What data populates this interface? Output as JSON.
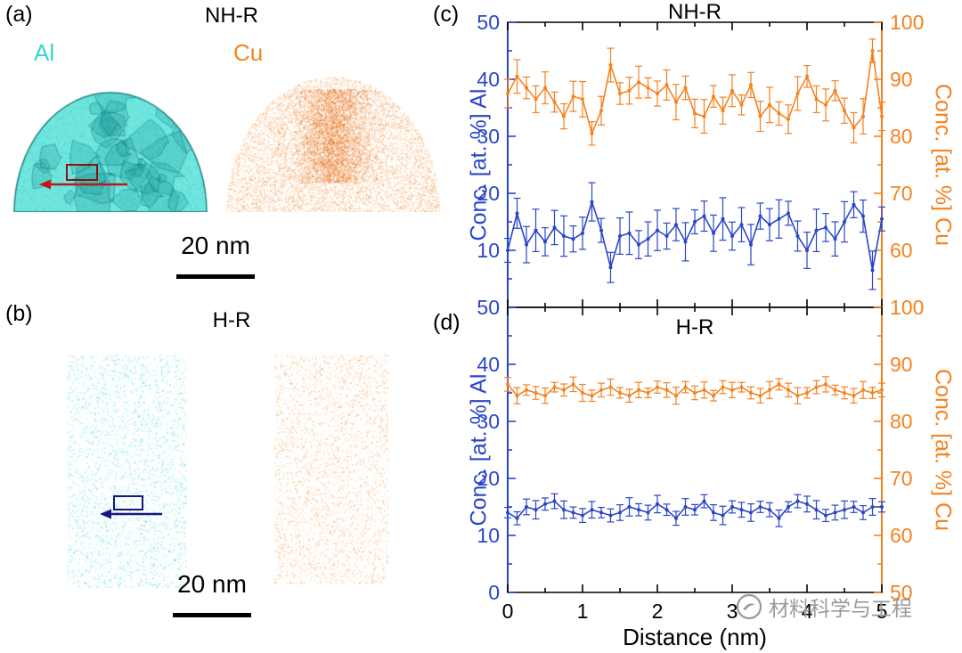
{
  "colors": {
    "al_text": "#2fd6d0",
    "cu_text": "#f58220",
    "blue": "#2a46c8",
    "orange": "#f58220",
    "al_map": "#48e0d6",
    "al_dark": "#0e8f8f",
    "cu_map": "#f27a14",
    "roi_a": "#8a1212",
    "arrow_a": "#c41414",
    "roi_b": "#16167e",
    "arrow_b": "#16167e",
    "scalebar": "#000000",
    "frame": "#000000",
    "watermark": "#9a9a9a"
  },
  "panel_a": {
    "label": "(a)",
    "title": "NH-R",
    "al_label": "Al",
    "cu_label": "Cu",
    "scalebar_text": "20 nm"
  },
  "panel_b": {
    "label": "(b)",
    "title": "H-R",
    "scalebar_text": "20 nm"
  },
  "panel_c": {
    "label": "(c)",
    "title": "NH-R"
  },
  "panel_d": {
    "label": "(d)",
    "title": "H-R"
  },
  "watermark": {
    "text": "材料科学与工程"
  },
  "chart_data": [
    {
      "type": "line",
      "panel": "c",
      "title": "NH-R",
      "error_bars": true,
      "x_label": "Distance (nm)",
      "x_range": [
        0,
        5
      ],
      "x_ticks": [
        0,
        1,
        2,
        3,
        4,
        5
      ],
      "x_tick_labels_visible": false,
      "left_axis": {
        "label": "Conc. [at. %] Al",
        "range": [
          0,
          50
        ],
        "ticks": [
          10,
          20,
          30,
          40,
          50
        ],
        "color": "#2a46c8"
      },
      "right_axis": {
        "label": "Conc. [at. %] Cu",
        "range": [
          50,
          100
        ],
        "ticks": [
          60,
          70,
          80,
          90,
          100
        ],
        "color": "#f58220"
      },
      "x": [
        0,
        0.125,
        0.25,
        0.375,
        0.5,
        0.625,
        0.75,
        0.875,
        1,
        1.125,
        1.25,
        1.375,
        1.5,
        1.625,
        1.75,
        1.875,
        2,
        2.125,
        2.25,
        2.375,
        2.5,
        2.625,
        2.75,
        2.875,
        3,
        3.125,
        3.25,
        3.375,
        3.5,
        3.625,
        3.75,
        3.875,
        4,
        4.125,
        4.25,
        4.375,
        4.5,
        4.625,
        4.75,
        4.875,
        5
      ],
      "series": [
        {
          "name": "Al",
          "axis": "left",
          "color": "#2a46c8",
          "yerr": 3,
          "values": [
            10,
            16.5,
            11,
            13.5,
            11.5,
            14,
            12.5,
            12,
            13,
            18.5,
            13.5,
            7,
            12.5,
            13,
            11,
            12,
            13.5,
            12.5,
            14.5,
            11.5,
            15,
            16,
            13,
            15.5,
            12.5,
            14.5,
            11,
            16,
            14.5,
            15.5,
            16.5,
            12.5,
            10,
            13.5,
            14,
            12,
            15,
            18,
            16,
            6.5,
            15.5
          ]
        },
        {
          "name": "Cu",
          "axis": "right",
          "color": "#f58220",
          "yerr": 2.5,
          "values": [
            87.5,
            90.5,
            88.5,
            86.5,
            88.5,
            86,
            83.5,
            87,
            86.5,
            80.5,
            84.5,
            92.5,
            87.5,
            88,
            89.5,
            88.5,
            87.5,
            89,
            86,
            88.5,
            84,
            83.5,
            87,
            84.5,
            88,
            85.5,
            89,
            83.5,
            85.5,
            84,
            83,
            87.5,
            90.5,
            86.5,
            85.5,
            88,
            84.5,
            81.5,
            83.5,
            95,
            83.5
          ]
        }
      ]
    },
    {
      "type": "line",
      "panel": "d",
      "title": "H-R",
      "error_bars": true,
      "x_label": "Distance (nm)",
      "x_range": [
        0,
        5
      ],
      "x_ticks": [
        0,
        1,
        2,
        3,
        4,
        5
      ],
      "x_tick_labels_visible": true,
      "left_axis": {
        "label": "Conc. [at. %] Al",
        "range": [
          0,
          50
        ],
        "ticks": [
          0,
          10,
          20,
          30,
          40,
          50
        ],
        "color": "#2a46c8"
      },
      "right_axis": {
        "label": "Conc. [at. %] Cu",
        "range": [
          50,
          100
        ],
        "ticks": [
          50,
          60,
          70,
          80,
          90,
          100
        ],
        "color": "#f58220"
      },
      "x": [
        0,
        0.125,
        0.25,
        0.375,
        0.5,
        0.625,
        0.75,
        0.875,
        1,
        1.125,
        1.25,
        1.375,
        1.5,
        1.625,
        1.75,
        1.875,
        2,
        2.125,
        2.25,
        2.375,
        2.5,
        2.625,
        2.75,
        2.875,
        3,
        3.125,
        3.25,
        3.375,
        3.5,
        3.625,
        3.75,
        3.875,
        4,
        4.125,
        4.25,
        4.375,
        4.5,
        4.625,
        4.75,
        4.875,
        5
      ],
      "series": [
        {
          "name": "Al",
          "axis": "left",
          "color": "#2a46c8",
          "yerr": 1.3,
          "values": [
            14,
            13,
            15,
            14.5,
            15.5,
            16,
            14.5,
            14,
            13.5,
            14.5,
            14,
            13.5,
            14,
            15,
            14.5,
            14,
            15.5,
            14.5,
            13,
            15,
            14.5,
            16,
            14,
            13.5,
            15,
            14.5,
            14,
            15,
            14.5,
            13,
            15,
            16,
            15.5,
            14.5,
            13.5,
            14,
            14.5,
            15,
            14,
            15,
            15
          ]
        },
        {
          "name": "Cu",
          "axis": "right",
          "color": "#f58220",
          "yerr": 1.2,
          "values": [
            86.5,
            84.5,
            85.5,
            85,
            84.5,
            86,
            85.5,
            86.5,
            85,
            84.5,
            85.5,
            86,
            85,
            84.5,
            85.5,
            85,
            86,
            85.5,
            84.5,
            86,
            85,
            85.5,
            84.5,
            86,
            85.5,
            86,
            85,
            84.5,
            85.5,
            86.5,
            85.5,
            84.5,
            85,
            86,
            86.5,
            85.5,
            85,
            84.5,
            85.5,
            85,
            85.5
          ]
        }
      ]
    }
  ]
}
